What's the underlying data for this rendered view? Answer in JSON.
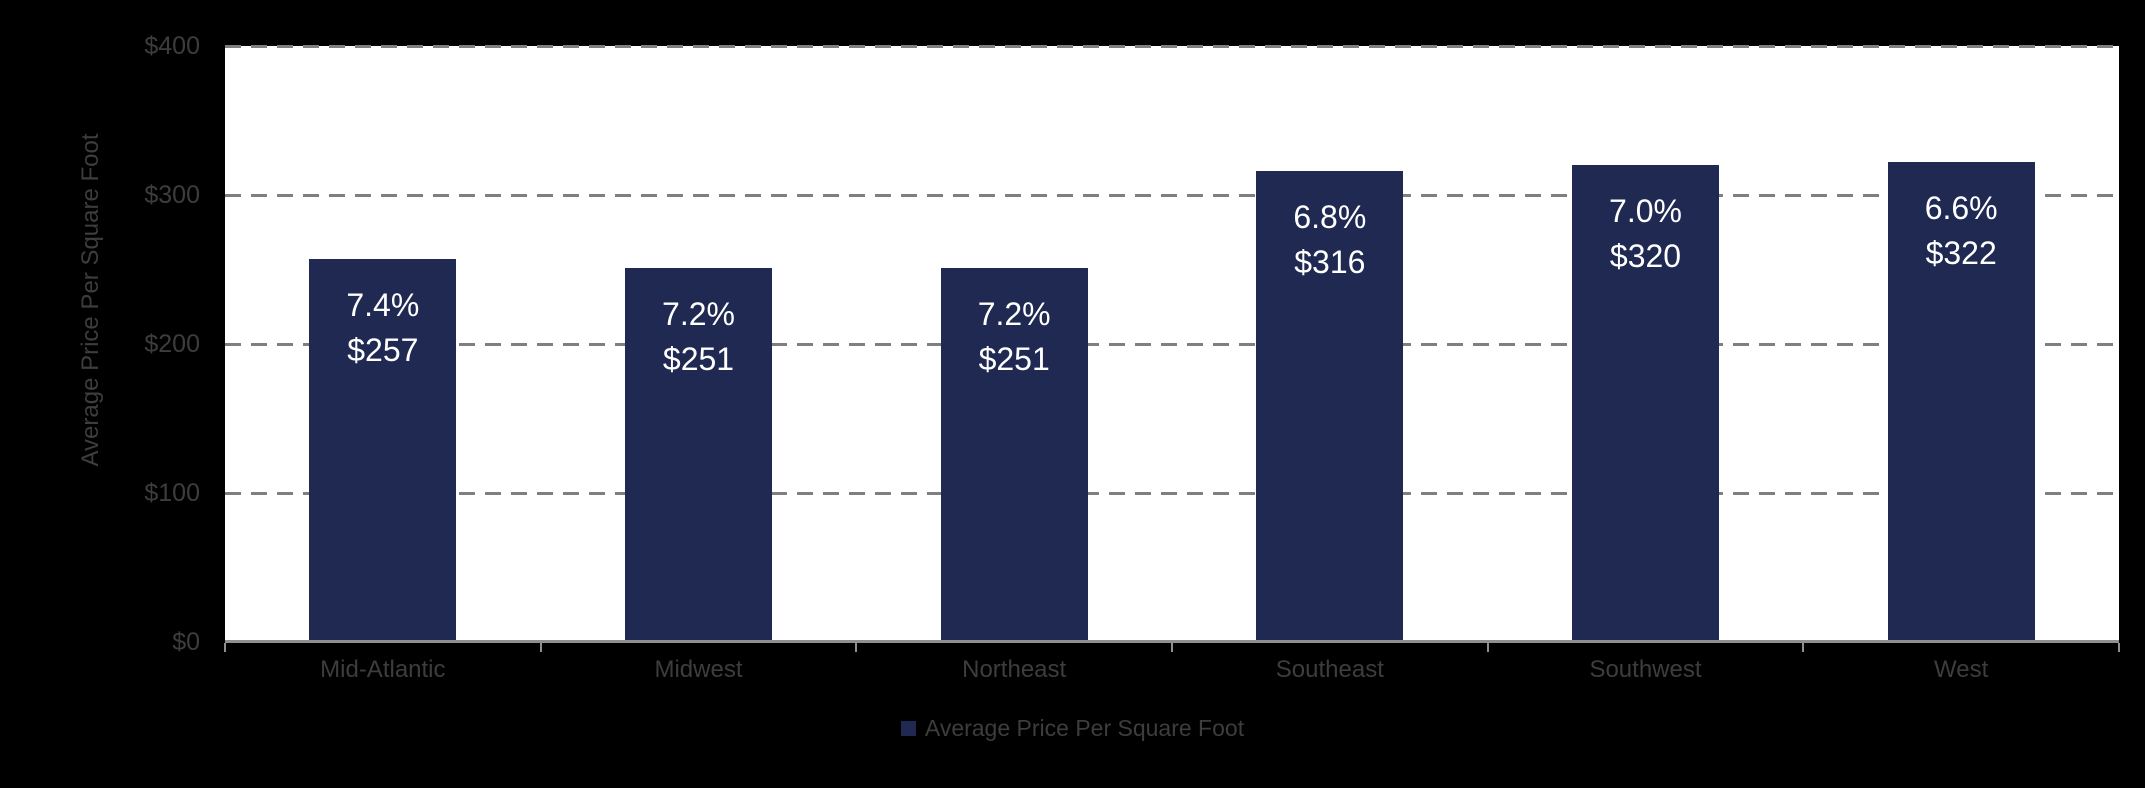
{
  "chart_data": {
    "type": "bar",
    "title": "",
    "categories": [
      "Mid-Atlantic",
      "Midwest",
      "Northeast",
      "Southeast",
      "Southwest",
      "West"
    ],
    "series": [
      {
        "name": "Average Price Per Square Foot",
        "values": [
          257,
          251,
          251,
          316,
          320,
          322
        ]
      }
    ],
    "bar_labels": [
      {
        "pct": "7.4%",
        "price": "$257"
      },
      {
        "pct": "7.2%",
        "price": "$251"
      },
      {
        "pct": "7.2%",
        "price": "$251"
      },
      {
        "pct": "6.8%",
        "price": "$316"
      },
      {
        "pct": "7.0%",
        "price": "$320"
      },
      {
        "pct": "6.6%",
        "price": "$322"
      }
    ],
    "xlabel": "",
    "ylabel": "Average Price Per Square Foot",
    "ylim": [
      0,
      400
    ],
    "y_ticks": [
      {
        "value": 0,
        "label": "$0"
      },
      {
        "value": 100,
        "label": "$100"
      },
      {
        "value": 200,
        "label": "$200"
      },
      {
        "value": 300,
        "label": "$300"
      },
      {
        "value": 400,
        "label": "$400"
      }
    ],
    "grid": "horizontal-dashed",
    "legend": {
      "label": "Average Price Per Square Foot",
      "position": "bottom-center"
    },
    "colors": {
      "bar": "#1F2952",
      "page_background": "#000000",
      "plot_background": "#FFFFFF",
      "gridline": "#7F7F7F",
      "axis_line": "#8F8F8F",
      "axis_text": "#3D3D3D",
      "bar_label_text": "#FFFFFF"
    }
  }
}
